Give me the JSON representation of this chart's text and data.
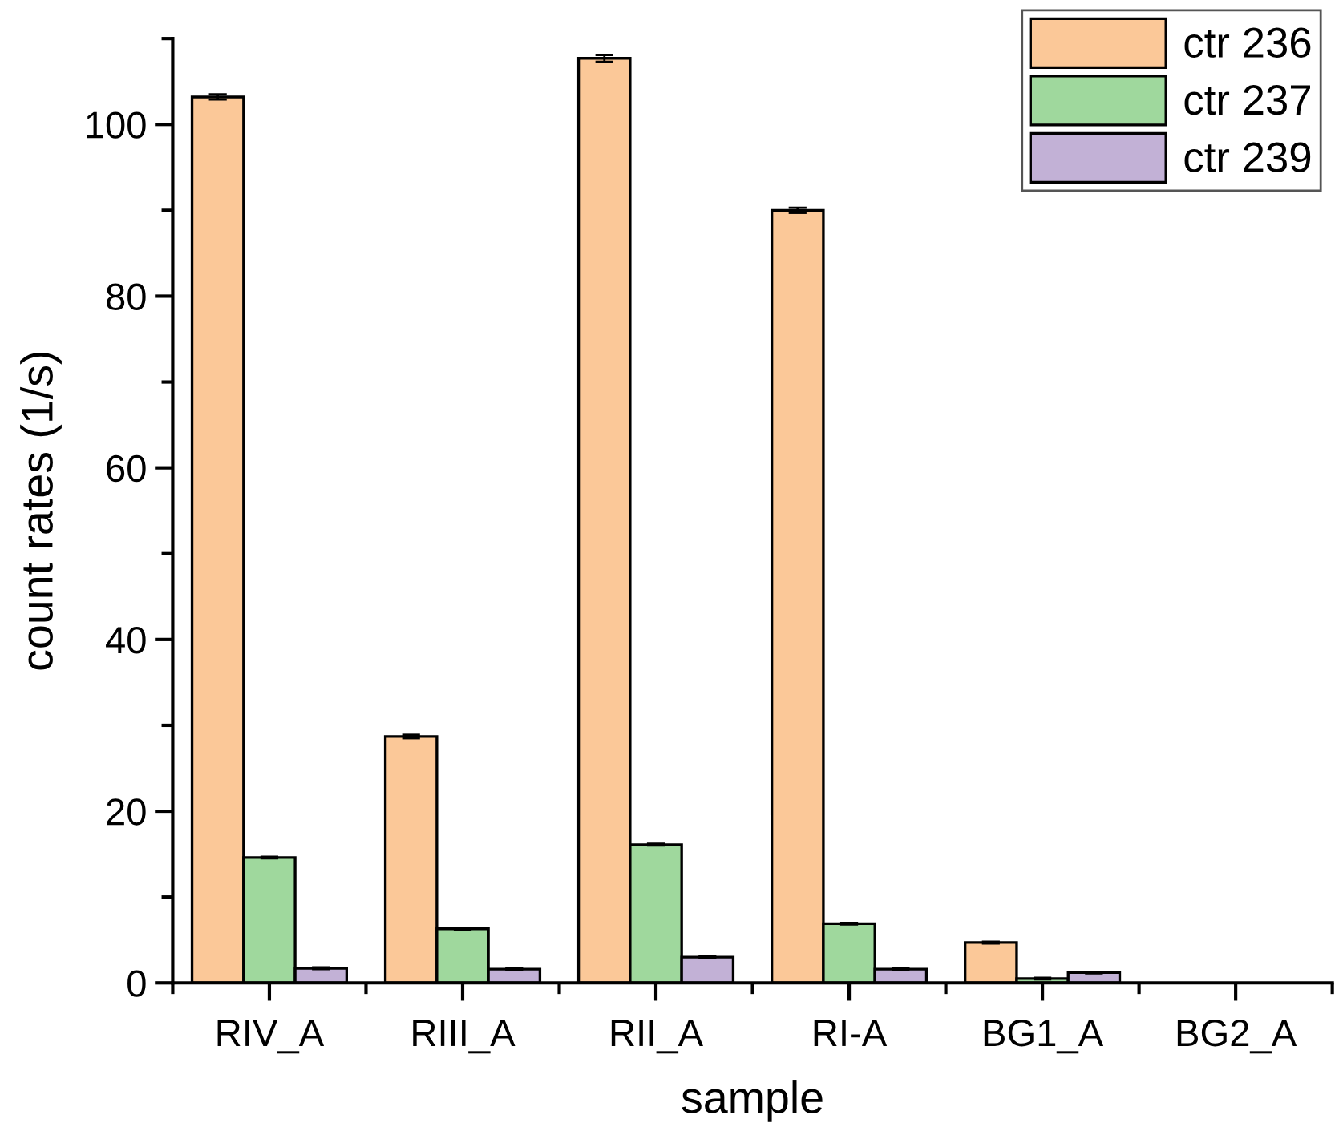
{
  "chart_data": {
    "type": "bar",
    "xlabel": "sample",
    "ylabel": "count rates (1/s)",
    "categories": [
      "RIV_A",
      "RIII_A",
      "RII_A",
      "RI-A",
      "BG1_A",
      "BG2_A"
    ],
    "series": [
      {
        "name": "ctr 236",
        "color": "#fbc898",
        "values": [
          103.2,
          28.7,
          107.7,
          90.0,
          4.7,
          null
        ],
        "errors": [
          0.3,
          0.2,
          0.4,
          0.3,
          0.1,
          null
        ]
      },
      {
        "name": "ctr 237",
        "color": "#9fd89d",
        "values": [
          14.6,
          6.3,
          16.1,
          6.9,
          0.5,
          null
        ],
        "errors": [
          0.1,
          0.1,
          0.1,
          0.1,
          0.1,
          null
        ]
      },
      {
        "name": "ctr 239",
        "color": "#c2b1d6",
        "values": [
          1.7,
          1.6,
          3.0,
          1.6,
          1.2,
          null
        ],
        "errors": [
          0.1,
          0.1,
          0.1,
          0.1,
          0.1,
          null
        ]
      }
    ],
    "ylim": [
      0,
      110
    ],
    "yticks": [
      0,
      20,
      40,
      60,
      80,
      100
    ],
    "grid": false,
    "legend": "top right"
  }
}
